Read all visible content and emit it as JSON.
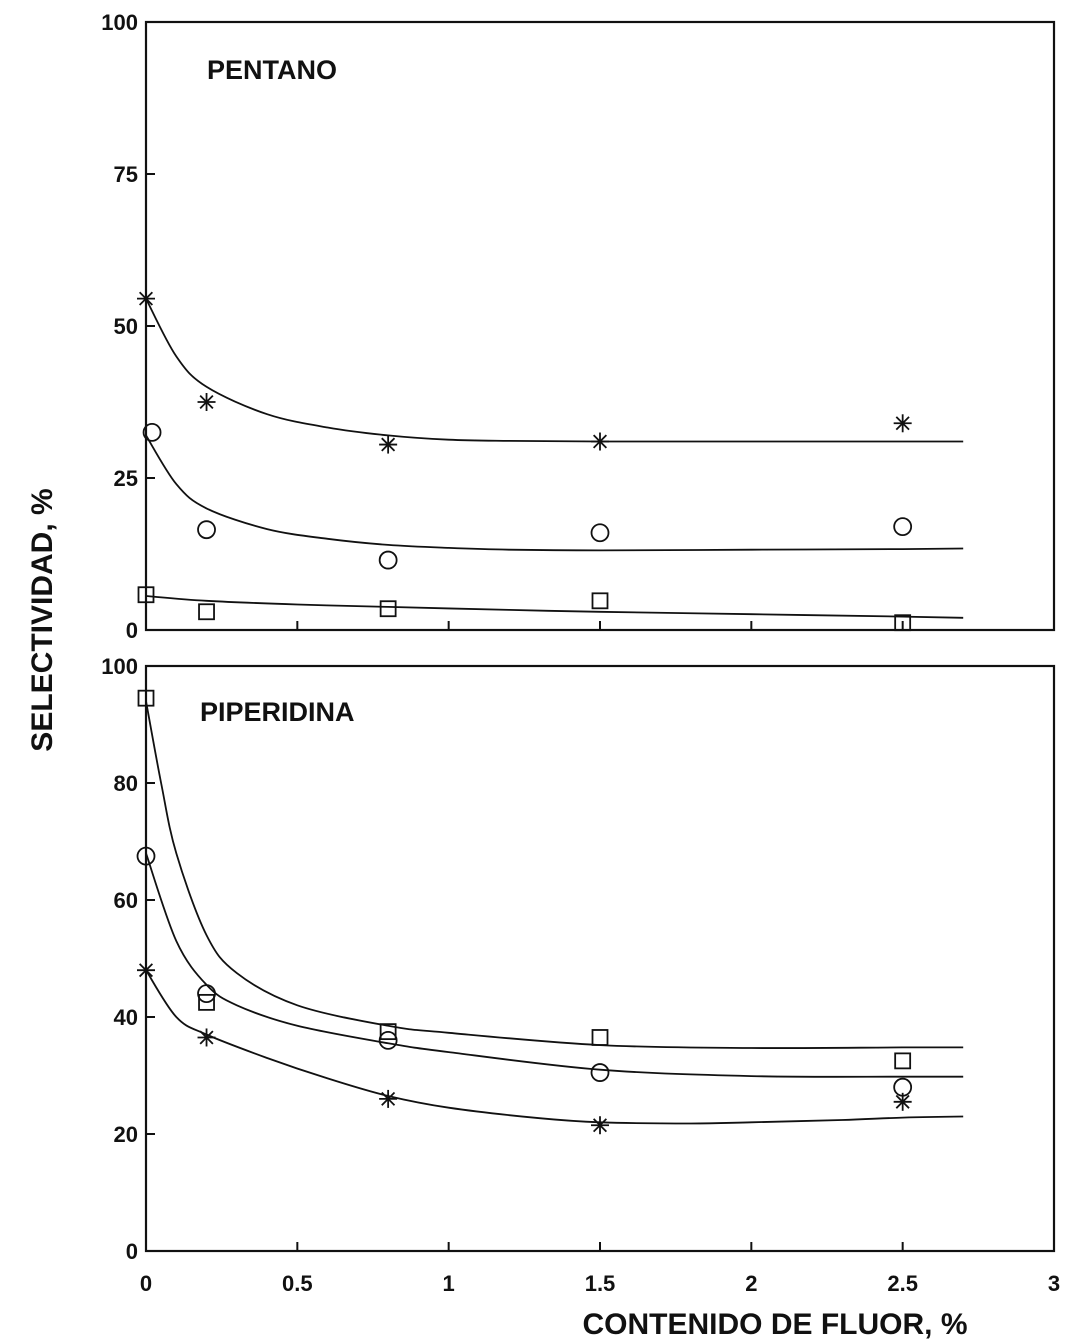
{
  "chart_data": [
    {
      "type": "scatter",
      "title": "PENTANO",
      "xlabel": "CONTENIDO DE FLUOR, %",
      "ylabel": "SELECTIVIDAD, %",
      "xlim": [
        0,
        3
      ],
      "ylim": [
        0,
        100
      ],
      "xticks": [
        "0",
        "0.5",
        "1",
        "1.5",
        "2",
        "2.5",
        "3"
      ],
      "yticks": [
        "0",
        "25",
        "50",
        "75",
        "100"
      ],
      "yticks_values": [
        0,
        25,
        50,
        75,
        100
      ],
      "series": [
        {
          "marker": "asterisk",
          "points": [
            [
              0,
              54.5
            ],
            [
              0.2,
              37.5
            ],
            [
              0.8,
              30.5
            ],
            [
              1.5,
              31
            ],
            [
              2.5,
              34
            ]
          ],
          "fit": [
            [
              0,
              54.5
            ],
            [
              0.1,
              45
            ],
            [
              0.2,
              40
            ],
            [
              0.4,
              35.5
            ],
            [
              0.6,
              33.3
            ],
            [
              0.8,
              32
            ],
            [
              1.0,
              31.3
            ],
            [
              1.2,
              31.1
            ],
            [
              1.5,
              31
            ],
            [
              2.0,
              31
            ],
            [
              2.5,
              31
            ],
            [
              2.7,
              31
            ]
          ]
        },
        {
          "marker": "circle",
          "points": [
            [
              0.02,
              32.5
            ],
            [
              0.2,
              16.5
            ],
            [
              0.8,
              11.5
            ],
            [
              1.5,
              16
            ],
            [
              2.5,
              17
            ]
          ],
          "fit": [
            [
              0,
              32
            ],
            [
              0.1,
              24
            ],
            [
              0.2,
              20
            ],
            [
              0.4,
              16.6
            ],
            [
              0.6,
              15
            ],
            [
              0.8,
              14
            ],
            [
              1.0,
              13.5
            ],
            [
              1.2,
              13.2
            ],
            [
              1.5,
              13.1
            ],
            [
              2.0,
              13.2
            ],
            [
              2.5,
              13.3
            ],
            [
              2.7,
              13.4
            ]
          ]
        },
        {
          "marker": "square",
          "points": [
            [
              0,
              5.8
            ],
            [
              0.2,
              3
            ],
            [
              0.8,
              3.5
            ],
            [
              1.5,
              4.8
            ],
            [
              2.5,
              1.2
            ]
          ],
          "fit": [
            [
              0,
              5.6
            ],
            [
              0.2,
              4.8
            ],
            [
              0.5,
              4.2
            ],
            [
              0.8,
              3.8
            ],
            [
              1.2,
              3.3
            ],
            [
              1.5,
              3
            ],
            [
              2.0,
              2.6
            ],
            [
              2.5,
              2.2
            ],
            [
              2.7,
              2
            ]
          ]
        }
      ]
    },
    {
      "type": "scatter",
      "title": "PIPERIDINA",
      "xlabel": "CONTENIDO DE FLUOR, %",
      "ylabel": "SELECTIVIDAD, %",
      "xlim": [
        0,
        3
      ],
      "ylim": [
        0,
        100
      ],
      "xticks": [
        "0",
        "0.5",
        "1",
        "1.5",
        "2",
        "2.5",
        "3"
      ],
      "yticks": [
        "0",
        "20",
        "40",
        "60",
        "80",
        "100"
      ],
      "yticks_values": [
        0,
        20,
        40,
        60,
        80,
        100
      ],
      "series": [
        {
          "marker": "square",
          "points": [
            [
              0,
              94.5
            ],
            [
              0.2,
              42.5
            ],
            [
              0.8,
              37.5
            ],
            [
              1.5,
              36.5
            ],
            [
              2.5,
              32.5
            ]
          ],
          "fit": [
            [
              0,
              94
            ],
            [
              0.05,
              80
            ],
            [
              0.1,
              68
            ],
            [
              0.2,
              54
            ],
            [
              0.3,
              47.5
            ],
            [
              0.5,
              42
            ],
            [
              0.8,
              38.5
            ],
            [
              1.0,
              37.3
            ],
            [
              1.5,
              35.2
            ],
            [
              2.0,
              34.7
            ],
            [
              2.5,
              34.8
            ],
            [
              2.7,
              34.8
            ]
          ]
        },
        {
          "marker": "circle",
          "points": [
            [
              0,
              67.5
            ],
            [
              0.2,
              44
            ],
            [
              0.8,
              36
            ],
            [
              1.5,
              30.5
            ],
            [
              2.5,
              28
            ]
          ],
          "fit": [
            [
              0,
              68
            ],
            [
              0.1,
              53
            ],
            [
              0.2,
              45.5
            ],
            [
              0.3,
              42
            ],
            [
              0.5,
              38.5
            ],
            [
              0.8,
              35.5
            ],
            [
              1.0,
              34
            ],
            [
              1.5,
              31
            ],
            [
              2.0,
              29.9
            ],
            [
              2.5,
              29.8
            ],
            [
              2.7,
              29.8
            ]
          ]
        },
        {
          "marker": "asterisk",
          "points": [
            [
              0,
              48
            ],
            [
              0.2,
              36.5
            ],
            [
              0.8,
              26
            ],
            [
              1.5,
              21.5
            ],
            [
              2.5,
              25.5
            ]
          ],
          "fit": [
            [
              0,
              48
            ],
            [
              0.1,
              40
            ],
            [
              0.2,
              37
            ],
            [
              0.4,
              33
            ],
            [
              0.6,
              29.5
            ],
            [
              0.8,
              26.5
            ],
            [
              1.0,
              24.5
            ],
            [
              1.3,
              22.7
            ],
            [
              1.5,
              22
            ],
            [
              1.8,
              21.8
            ],
            [
              2.0,
              22
            ],
            [
              2.3,
              22.4
            ],
            [
              2.5,
              22.8
            ],
            [
              2.7,
              23
            ]
          ]
        }
      ]
    }
  ]
}
